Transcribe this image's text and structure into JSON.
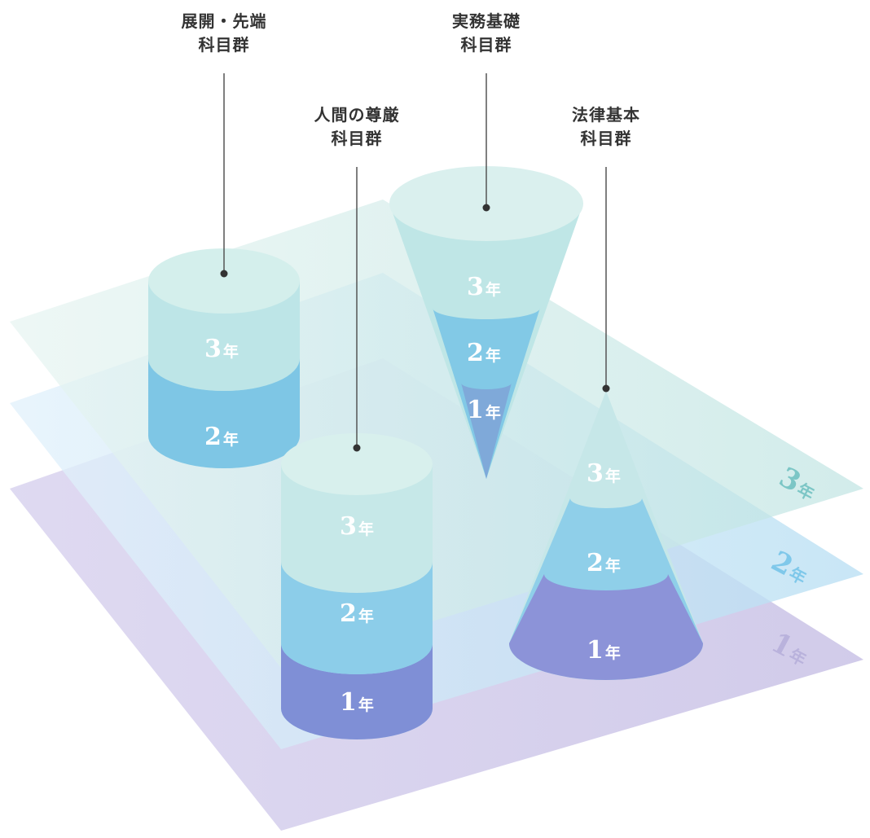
{
  "layers": [
    {
      "num": "1",
      "unit": "年",
      "color": "#b9b2dc"
    },
    {
      "num": "2",
      "unit": "年",
      "color": "#7fc8ea"
    },
    {
      "num": "3",
      "unit": "年",
      "color": "#7cc6c6"
    }
  ],
  "groups": {
    "tenkai": {
      "line1": "展開・先端",
      "line2": "科目群"
    },
    "ningen": {
      "line1": "人間の尊厳",
      "line2": "科目群"
    },
    "jitsumu": {
      "line1": "実務基礎",
      "line2": "科目群"
    },
    "houritsu": {
      "line1": "法律基本",
      "line2": "科目群"
    }
  },
  "segments": {
    "tenkai": [
      {
        "num": "3",
        "unit": "年"
      },
      {
        "num": "2",
        "unit": "年"
      }
    ],
    "ningen": [
      {
        "num": "3",
        "unit": "年"
      },
      {
        "num": "2",
        "unit": "年"
      },
      {
        "num": "1",
        "unit": "年"
      }
    ],
    "jitsumu": [
      {
        "num": "3",
        "unit": "年"
      },
      {
        "num": "2",
        "unit": "年"
      },
      {
        "num": "1",
        "unit": "年"
      }
    ],
    "houritsu": [
      {
        "num": "3",
        "unit": "年"
      },
      {
        "num": "2",
        "unit": "年"
      },
      {
        "num": "1",
        "unit": "年"
      }
    ]
  }
}
